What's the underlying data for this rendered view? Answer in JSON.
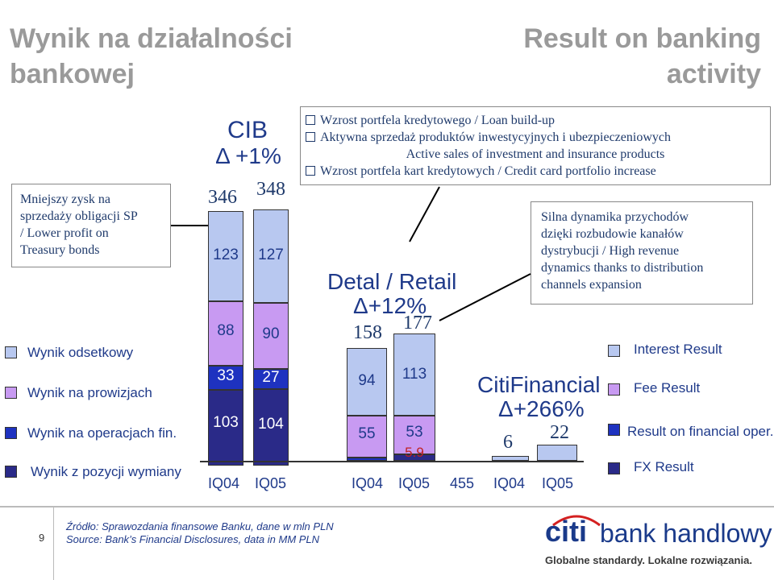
{
  "title_pl_line1": "Wynik na działalności",
  "title_pl_line2": "bankowej",
  "title_en_line1": "Result on banking",
  "title_en_line2": "activity",
  "left_box": {
    "line1": "Mniejszy zysk na",
    "line2": "sprzedaży obligacji SP",
    "line3": "/ Lower profit on",
    "line4": "Treasury bonds"
  },
  "bullets": {
    "b1": "Wzrost portfela kredytowego / Loan build-up",
    "b2": "Aktywna sprzedaż produktów inwestycyjnych i ubezpieczeniowych",
    "b2_en": "Active sales of investment and insurance products",
    "b3": "Wzrost portfela kart kredytowych / Credit card portfolio increase"
  },
  "right_box": {
    "line1": "Silna dynamika przychodów",
    "line2": "dzięki rozbudowie kanałów",
    "line3": "dystrybucji / High revenue",
    "line4": "dynamics thanks to distribution",
    "line5": "channels expansion"
  },
  "cib": {
    "name": "CIB",
    "delta": "Δ +1%",
    "total_q1": "346",
    "total_q2": "348",
    "q1": {
      "interest": "123",
      "fee": "88",
      "fin": "33",
      "fx": "103"
    },
    "q2": {
      "interest": "127",
      "fee": "90",
      "fin": "27",
      "fx": "104"
    }
  },
  "retail": {
    "name": "Detal / Retail",
    "delta": "Δ+12%",
    "total_q1": "158",
    "total_q2": "177",
    "q1": {
      "fee": "94",
      "fin": "55"
    },
    "q2": {
      "fee": "113",
      "fin": "53",
      "fx": "5.9"
    }
  },
  "citifinancial": {
    "name": "CitiFinancial",
    "delta": "Δ+266%",
    "total_q1": "6",
    "total_q2": "22"
  },
  "xlabels": {
    "cib_q1": "IQ04",
    "cib_q2": "IQ05",
    "ret_q1": "IQ04",
    "ret_q2": "IQ05",
    "stray": "455",
    "cf_q1": "IQ04",
    "cf_q2": "IQ05"
  },
  "legend_pl": {
    "interest": "Wynik odsetkowy",
    "fee": "Wynik na prowizjach",
    "fin": "Wynik na operacjach fin.",
    "fx": "Wynik z pozycji wymiany"
  },
  "legend_en": {
    "interest": "Interest Result",
    "fee": "Fee Result",
    "fin": "Result on financial oper.",
    "fx": "FX Result"
  },
  "colors": {
    "interest": "#b8c8f0",
    "fee": "#c89af2",
    "fin": "#1e32c0",
    "fx": "#2a2a88"
  },
  "footer": {
    "page": "9",
    "source_pl": "Źródło: Sprawozdania finansowe Banku, dane w mln PLN",
    "source_en": "Source: Bank’s Financial Disclosures, data in MM PLN",
    "brand_citi": "citi",
    "brand_rest": "bank handlowy",
    "tagline": "Globalne standardy. Lokalne rozwiązania."
  }
}
